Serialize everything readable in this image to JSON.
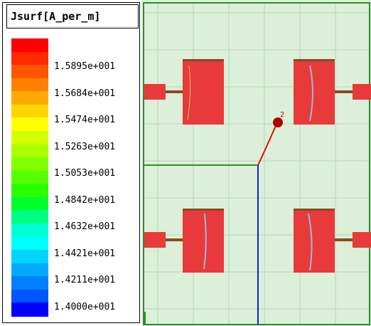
{
  "legend": {
    "title": "Jsurf[A_per_m]",
    "colors": [
      "#ff0000",
      "#ff2a00",
      "#ff5500",
      "#ff8000",
      "#ffaa00",
      "#ffd400",
      "#ffff00",
      "#d4ff00",
      "#aaff00",
      "#80ff00",
      "#55ff00",
      "#2aff00",
      "#00ff2a",
      "#00ff80",
      "#00ffd4",
      "#00ffff",
      "#00d4ff",
      "#00aaff",
      "#0080ff",
      "#0055ff",
      "#0000ff"
    ],
    "ticks": [
      "1.5895e+001",
      "1.5684e+001",
      "1.5474e+001",
      "1.5263e+001",
      "1.5053e+001",
      "1.4842e+001",
      "1.4632e+001",
      "1.4421e+001",
      "1.4211e+001",
      "1.4000e+001"
    ]
  },
  "viewport": {
    "background": "#dcefd9",
    "grid_color": "#b9d6b6",
    "patch_color": "#e83a3a",
    "axis_x_color": "#2e8b2e",
    "axis_y_color": "#1a1ae0",
    "port_marker_label": "2"
  }
}
